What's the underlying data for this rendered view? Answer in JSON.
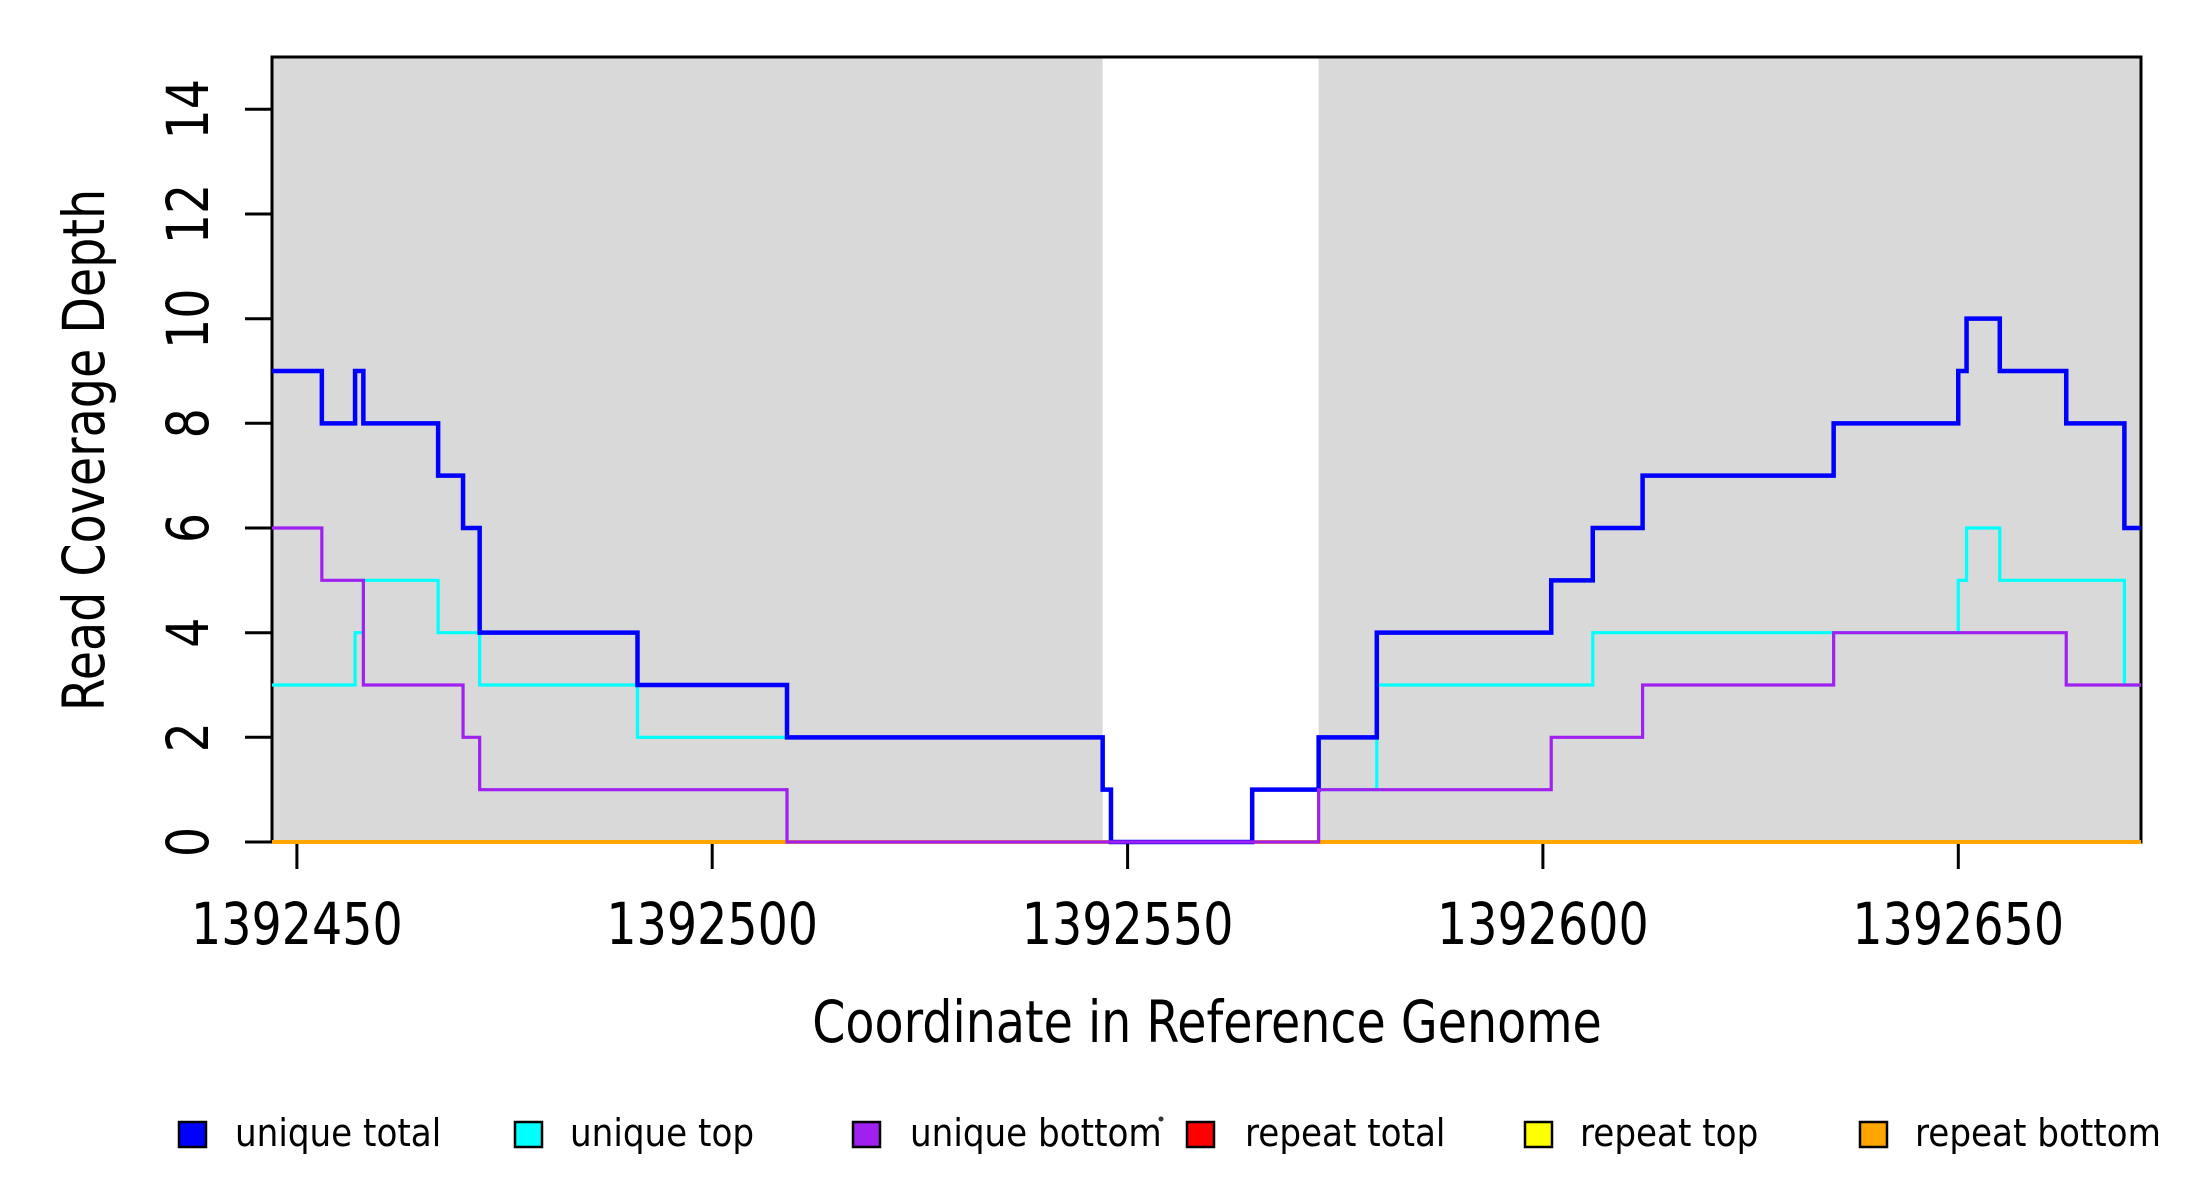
{
  "chart_data": {
    "type": "line",
    "subtype": "step",
    "title": "",
    "xlabel": "Coordinate in Reference Genome",
    "ylabel": "Read Coverage Depth",
    "xlim": [
      1392447,
      1392672
    ],
    "ylim": [
      0,
      15
    ],
    "grid": false,
    "legend_position": "bottom",
    "background_color": "#FFFFFF",
    "shaded_region_color": "#D9D9D9",
    "x_ticks": [
      1392450,
      1392500,
      1392550,
      1392600,
      1392650
    ],
    "x_tick_labels": [
      "1392450",
      "1392500",
      "1392550",
      "1392600",
      "1392650"
    ],
    "y_ticks": [
      0,
      2,
      4,
      6,
      8,
      10,
      12,
      14
    ],
    "y_tick_labels": [
      "0",
      "2",
      "4",
      "6",
      "8",
      "10",
      "12",
      "14"
    ],
    "shaded_regions": [
      {
        "x0": 1392447,
        "x1": 1392547
      },
      {
        "x0": 1392573,
        "x1": 1392672
      }
    ],
    "series": [
      {
        "name": "unique total",
        "color": "#0000FF",
        "steps": [
          [
            1392447,
            9
          ],
          [
            1392453,
            8
          ],
          [
            1392457,
            9
          ],
          [
            1392458,
            8
          ],
          [
            1392467,
            7
          ],
          [
            1392470,
            6
          ],
          [
            1392472,
            4
          ],
          [
            1392491,
            3
          ],
          [
            1392509,
            2
          ],
          [
            1392547,
            1
          ],
          [
            1392548,
            0
          ],
          [
            1392565,
            1
          ],
          [
            1392573,
            2
          ],
          [
            1392580,
            4
          ],
          [
            1392601,
            5
          ],
          [
            1392606,
            6
          ],
          [
            1392612,
            7
          ],
          [
            1392635,
            8
          ],
          [
            1392650,
            9
          ],
          [
            1392651,
            10
          ],
          [
            1392655,
            9
          ],
          [
            1392663,
            8
          ],
          [
            1392670,
            6
          ]
        ]
      },
      {
        "name": "unique top",
        "color": "#00FFFF",
        "steps": [
          [
            1392447,
            3
          ],
          [
            1392457,
            4
          ],
          [
            1392458,
            5
          ],
          [
            1392467,
            4
          ],
          [
            1392472,
            3
          ],
          [
            1392491,
            2
          ],
          [
            1392547,
            1
          ],
          [
            1392548,
            0
          ],
          [
            1392565,
            1
          ],
          [
            1392580,
            3
          ],
          [
            1392606,
            4
          ],
          [
            1392650,
            5
          ],
          [
            1392651,
            6
          ],
          [
            1392655,
            5
          ],
          [
            1392670,
            3
          ]
        ]
      },
      {
        "name": "unique bottom",
        "color": "#A020F0",
        "steps": [
          [
            1392447,
            6
          ],
          [
            1392453,
            5
          ],
          [
            1392458,
            3
          ],
          [
            1392470,
            2
          ],
          [
            1392472,
            1
          ],
          [
            1392509,
            0
          ],
          [
            1392573,
            1
          ],
          [
            1392601,
            2
          ],
          [
            1392612,
            3
          ],
          [
            1392635,
            4
          ],
          [
            1392663,
            3
          ]
        ]
      },
      {
        "name": "repeat total",
        "color": "#FF0000",
        "steps": [
          [
            1392447,
            0
          ]
        ]
      },
      {
        "name": "repeat top",
        "color": "#FFFF00",
        "steps": [
          [
            1392447,
            0
          ]
        ]
      },
      {
        "name": "repeat bottom",
        "color": "#FFA500",
        "steps": [
          [
            1392447,
            0
          ]
        ]
      }
    ],
    "draw_order": [
      3,
      4,
      5,
      1,
      0,
      2
    ],
    "line_widths": [
      4.5,
      3.2,
      3.2,
      3.0,
      3.0,
      4.0
    ]
  }
}
